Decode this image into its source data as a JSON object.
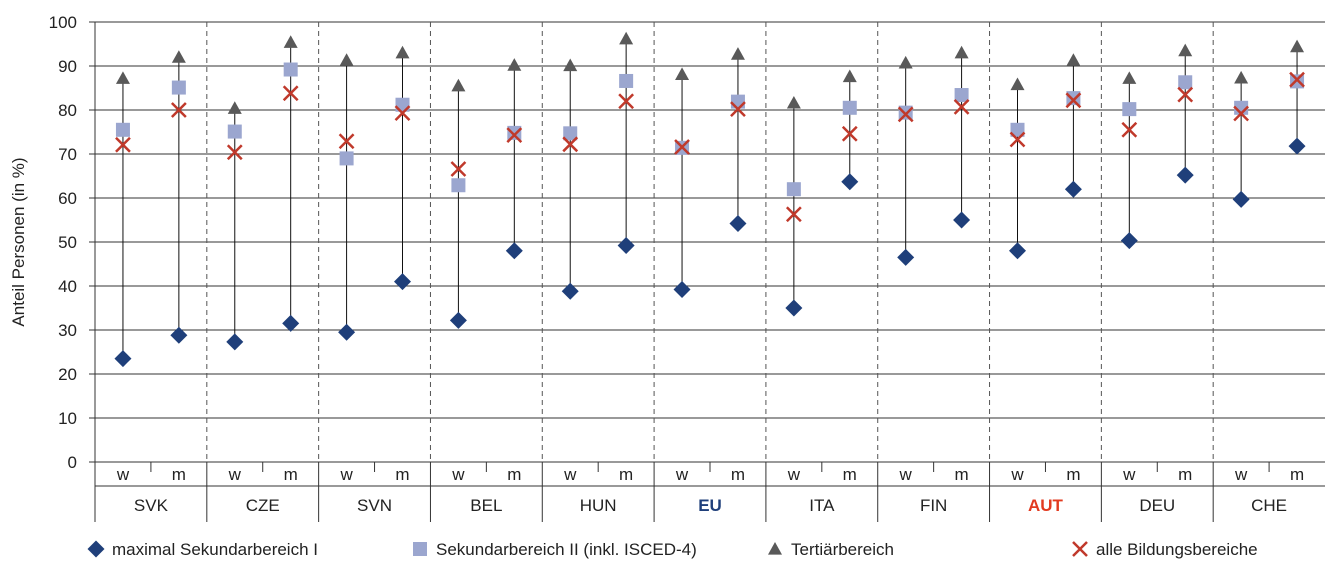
{
  "chart_data": {
    "type": "scatter",
    "ylabel": "Anteil Personen (in %)",
    "ylim": [
      0,
      100
    ],
    "yticks": [
      0,
      10,
      20,
      30,
      40,
      50,
      60,
      70,
      80,
      90,
      100
    ],
    "grid": true,
    "legend_position": "bottom",
    "gender_labels": [
      "w",
      "m"
    ],
    "countries": [
      {
        "name": "SVK",
        "highlight": null
      },
      {
        "name": "CZE",
        "highlight": null
      },
      {
        "name": "SVN",
        "highlight": null
      },
      {
        "name": "BEL",
        "highlight": null
      },
      {
        "name": "HUN",
        "highlight": null
      },
      {
        "name": "EU",
        "highlight": "#1f3f7a"
      },
      {
        "name": "ITA",
        "highlight": null
      },
      {
        "name": "FIN",
        "highlight": null
      },
      {
        "name": "AUT",
        "highlight": "#e23a1f"
      },
      {
        "name": "DEU",
        "highlight": null
      },
      {
        "name": "CHE",
        "highlight": null
      }
    ],
    "series": [
      {
        "name": "maximal Sekundarbereich I",
        "marker": "diamond",
        "color": "#1f3f7a",
        "values": [
          23.5,
          28.8,
          27.3,
          31.5,
          29.5,
          41,
          32.2,
          48,
          38.8,
          49.2,
          39.2,
          54.2,
          35,
          63.7,
          46.5,
          55,
          48,
          62,
          50.3,
          65.2,
          59.7,
          71.8
        ]
      },
      {
        "name": "Sekundarbereich II (inkl. ISCED-4)",
        "marker": "square",
        "color": "#9ba6cf",
        "values": [
          75.5,
          85.1,
          75.1,
          89.2,
          69,
          81.2,
          62.9,
          74.8,
          74.7,
          86.6,
          71.4,
          81.9,
          62,
          80.5,
          79.4,
          83.4,
          75.5,
          82.7,
          80.2,
          86.3,
          80.5,
          86.5
        ]
      },
      {
        "name": "Tertiärbereich",
        "marker": "triangle",
        "color": "#595959",
        "values": [
          87.2,
          92,
          80.4,
          95.4,
          91.3,
          93,
          85.5,
          90.2,
          90.1,
          96.2,
          88.1,
          92.7,
          81.6,
          87.6,
          90.7,
          93,
          85.8,
          91.3,
          87.2,
          93.5,
          87.3,
          94.4
        ]
      },
      {
        "name": "alle Bildungsbereiche",
        "marker": "x",
        "color": "#c0392b",
        "values": [
          72.1,
          80,
          70.4,
          83.8,
          72.9,
          79.3,
          66.6,
          74.3,
          72.2,
          82,
          71.6,
          80.2,
          56.3,
          74.6,
          79,
          80.7,
          73.3,
          82.2,
          75.5,
          83.5,
          79.2,
          86.9
        ]
      }
    ]
  }
}
